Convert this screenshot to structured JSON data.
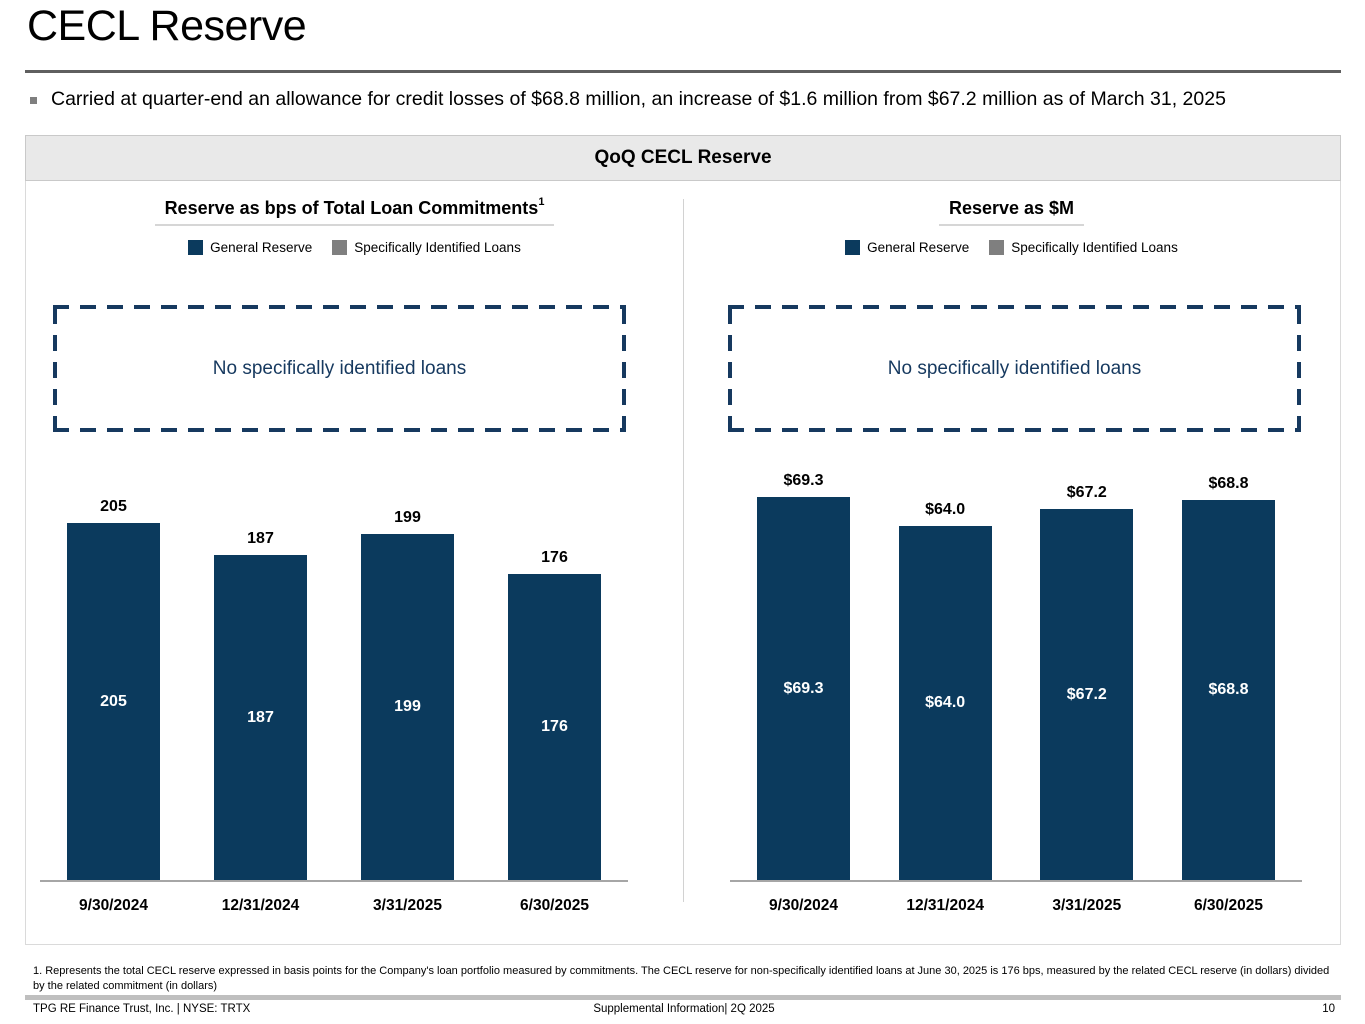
{
  "slide": {
    "title": "CECL Reserve",
    "bullet": "Carried at quarter-end an allowance for credit losses of $68.8 million, an increase of $1.6 million from $67.2 million as of March 31, 2025",
    "panel_header": "QoQ CECL Reserve"
  },
  "colors": {
    "bar_navy": "#0b3a5d",
    "legend_gray": "#7f7f7f",
    "annotation_navy": "#16395f",
    "panel_header_bg": "#e9e9e9",
    "axis_line": "#a6a6a6"
  },
  "chart_data": [
    {
      "type": "bar",
      "title": "Reserve as bps of Total Loan Commitments",
      "title_superscript": "1",
      "legend": [
        "General Reserve",
        "Specifically Identified Loans"
      ],
      "legend_position": "top",
      "annotation": "No specifically identified loans",
      "categories": [
        "9/30/2024",
        "12/31/2024",
        "3/31/2025",
        "6/30/2025"
      ],
      "series": [
        {
          "name": "General Reserve",
          "color": "#0b3a5d",
          "values": [
            205,
            187,
            199,
            176
          ]
        },
        {
          "name": "Specifically Identified Loans",
          "color": "#7f7f7f",
          "values": [
            0,
            0,
            0,
            0
          ]
        }
      ],
      "data_labels": {
        "above": [
          "205",
          "187",
          "199",
          "176"
        ],
        "inside": [
          "205",
          "187",
          "199",
          "176"
        ]
      },
      "ylim": [
        0,
        223
      ],
      "grid": false
    },
    {
      "type": "bar",
      "title": "Reserve as $M",
      "title_superscript": "",
      "legend": [
        "General Reserve",
        "Specifically Identified Loans"
      ],
      "legend_position": "top",
      "annotation": "No specifically identified loans",
      "categories": [
        "9/30/2024",
        "12/31/2024",
        "3/31/2025",
        "6/30/2025"
      ],
      "series": [
        {
          "name": "General Reserve",
          "color": "#0b3a5d",
          "values": [
            69.3,
            64.0,
            67.2,
            68.8
          ]
        },
        {
          "name": "Specifically Identified Loans",
          "color": "#7f7f7f",
          "values": [
            0,
            0,
            0,
            0
          ]
        }
      ],
      "data_labels": {
        "above": [
          "$69.3",
          "$64.0",
          "$67.2",
          "$68.8"
        ],
        "inside": [
          "$69.3",
          "$64.0",
          "$67.2",
          "$68.8"
        ]
      },
      "ylim": [
        0,
        70.2
      ],
      "grid": false
    }
  ],
  "footnote": "1. Represents the total CECL reserve expressed in basis points for the Company's loan portfolio measured by commitments. The CECL reserve for non-specifically identified loans at June 30, 2025 is 176 bps, measured by the related CECL reserve (in dollars) divided by the related commitment (in dollars)",
  "footer": {
    "left": "TPG RE Finance Trust, Inc. | NYSE: TRTX",
    "center": "Supplemental Information| 2Q 2025",
    "page_number": "10"
  }
}
